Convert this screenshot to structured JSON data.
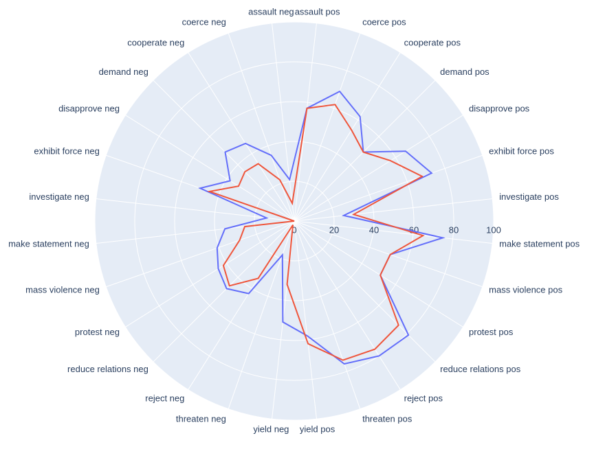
{
  "chart_data": {
    "type": "radar",
    "categories": [
      "assault pos",
      "coerce pos",
      "cooperate pos",
      "demand pos",
      "disapprove pos",
      "exhibit force pos",
      "investigate pos",
      "make statement pos",
      "mass violence pos",
      "protest pos",
      "reduce relations pos",
      "reject pos",
      "threaten pos",
      "yield pos",
      "yield neg",
      "threaten neg",
      "reject neg",
      "reduce relations neg",
      "protest neg",
      "mass violence neg",
      "make statement neg",
      "investigate neg",
      "exhibit force neg",
      "disapprove neg",
      "demand neg",
      "cooperate neg",
      "coerce neg",
      "assault neg"
    ],
    "series": [
      {
        "color": "#636efa",
        "values": [
          57,
          69,
          62,
          49,
          66,
          73,
          25,
          75,
          51,
          51,
          81,
          80,
          76,
          58,
          51,
          18,
          43,
          48,
          45,
          41,
          35,
          14,
          50,
          38,
          49,
          46,
          35,
          21
        ]
      },
      {
        "color": "#ef553b",
        "values": [
          57,
          62,
          54,
          49,
          57,
          68,
          30,
          65,
          51,
          51,
          74,
          76,
          74,
          62,
          32,
          2,
          34,
          46,
          42,
          29,
          25,
          0,
          45,
          33,
          35,
          34,
          22,
          9
        ]
      }
    ],
    "rlim": [
      0,
      100
    ],
    "rticks": [
      0,
      20,
      40,
      60,
      80,
      100
    ],
    "grid": true
  }
}
